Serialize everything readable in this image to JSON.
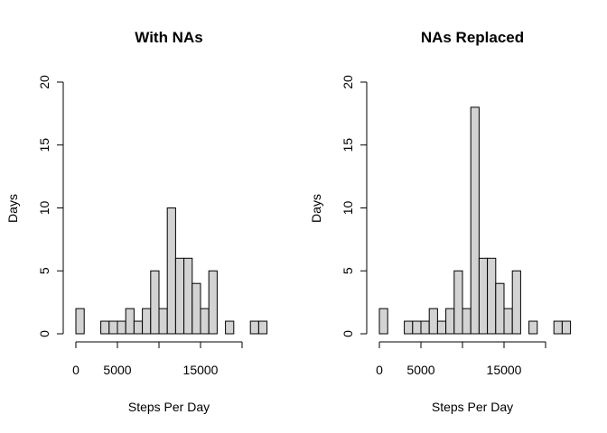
{
  "chart_data": [
    {
      "type": "bar",
      "title": "With NAs",
      "xlabel": "Steps Per Day",
      "ylabel": "Days",
      "bin_width": 1000,
      "bin_start": 0,
      "values": [
        2,
        0,
        0,
        1,
        1,
        1,
        2,
        1,
        2,
        5,
        2,
        10,
        6,
        6,
        4,
        2,
        5,
        0,
        1,
        0,
        0,
        1,
        1
      ],
      "ylim": [
        0,
        20
      ],
      "yticks": [
        0,
        5,
        10,
        15,
        20
      ],
      "xticks": [
        0,
        5000,
        10000,
        15000,
        20000
      ],
      "xtick_labels": [
        "0",
        "5000",
        "",
        "15000",
        ""
      ],
      "bar_fill": "#d3d3d3",
      "grid": false
    },
    {
      "type": "bar",
      "title": "NAs Replaced",
      "xlabel": "Steps Per Day",
      "ylabel": "Days",
      "bin_width": 1000,
      "bin_start": 0,
      "values": [
        2,
        0,
        0,
        1,
        1,
        1,
        2,
        1,
        2,
        5,
        2,
        18,
        6,
        6,
        4,
        2,
        5,
        0,
        1,
        0,
        0,
        1,
        1
      ],
      "ylim": [
        0,
        20
      ],
      "yticks": [
        0,
        5,
        10,
        15,
        20
      ],
      "xticks": [
        0,
        5000,
        10000,
        15000,
        20000
      ],
      "xtick_labels": [
        "0",
        "5000",
        "",
        "15000",
        ""
      ],
      "bar_fill": "#d3d3d3",
      "grid": false
    }
  ]
}
